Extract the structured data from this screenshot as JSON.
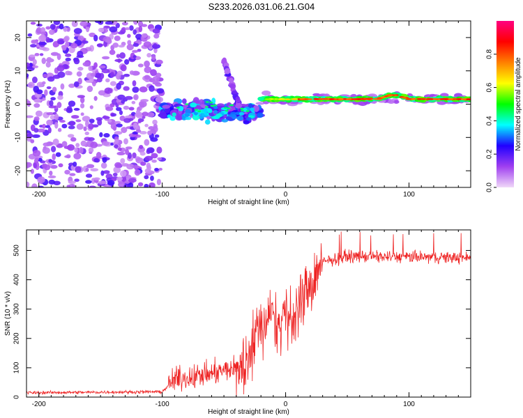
{
  "title": "S233.2026.031.06.21.G04",
  "chart_data": [
    {
      "type": "heatmap",
      "xlabel": "Height of straight line (km)",
      "ylabel": "Frequency (Hz)",
      "xlim": [
        -210,
        150
      ],
      "ylim": [
        -25,
        25
      ],
      "xticks": [
        -200,
        -100,
        0,
        100
      ],
      "yticks": [
        -20,
        -10,
        0,
        10,
        20
      ],
      "colorbar": {
        "label": "Normalized spectral amplitude",
        "range": [
          0.0,
          1.0
        ],
        "ticks": [
          0.0,
          0.2,
          0.4,
          0.6,
          0.8
        ],
        "colors": [
          "#f0d8f8",
          "#a040f0",
          "#2000ff",
          "#00ffff",
          "#00ff00",
          "#ffff00",
          "#ff8000",
          "#ff0000",
          "#ff0080"
        ]
      },
      "features": [
        {
          "name": "noise",
          "x_range": [
            -210,
            -100
          ],
          "freq_range": [
            -25,
            25
          ],
          "amplitude": 0.15
        },
        {
          "name": "transition",
          "x_range": [
            -100,
            -20
          ],
          "freq_range": [
            -8,
            5
          ],
          "amplitude": 0.4
        },
        {
          "name": "spike",
          "x_range": [
            -50,
            -35
          ],
          "freq_range": [
            0,
            15
          ],
          "amplitude": 0.3
        },
        {
          "name": "carrier",
          "x_range": [
            -20,
            150
          ],
          "freq_center": 1.5,
          "amplitude": 0.85
        }
      ]
    },
    {
      "type": "line",
      "xlabel": "Height of straight line (km)",
      "ylabel": "SNR (10 * v/v)",
      "xlim": [
        -210,
        150
      ],
      "ylim": [
        0,
        570
      ],
      "xticks": [
        -200,
        -100,
        0,
        100
      ],
      "yticks": [
        0,
        100,
        200,
        300,
        400,
        500
      ],
      "color": "#ee2222",
      "profile_x": [
        -210,
        -100,
        -90,
        -60,
        -40,
        -30,
        -20,
        -10,
        0,
        10,
        20,
        30,
        40,
        50,
        150
      ],
      "profile_y": [
        15,
        18,
        60,
        80,
        100,
        170,
        260,
        300,
        280,
        310,
        420,
        460,
        470,
        480,
        475
      ]
    }
  ]
}
